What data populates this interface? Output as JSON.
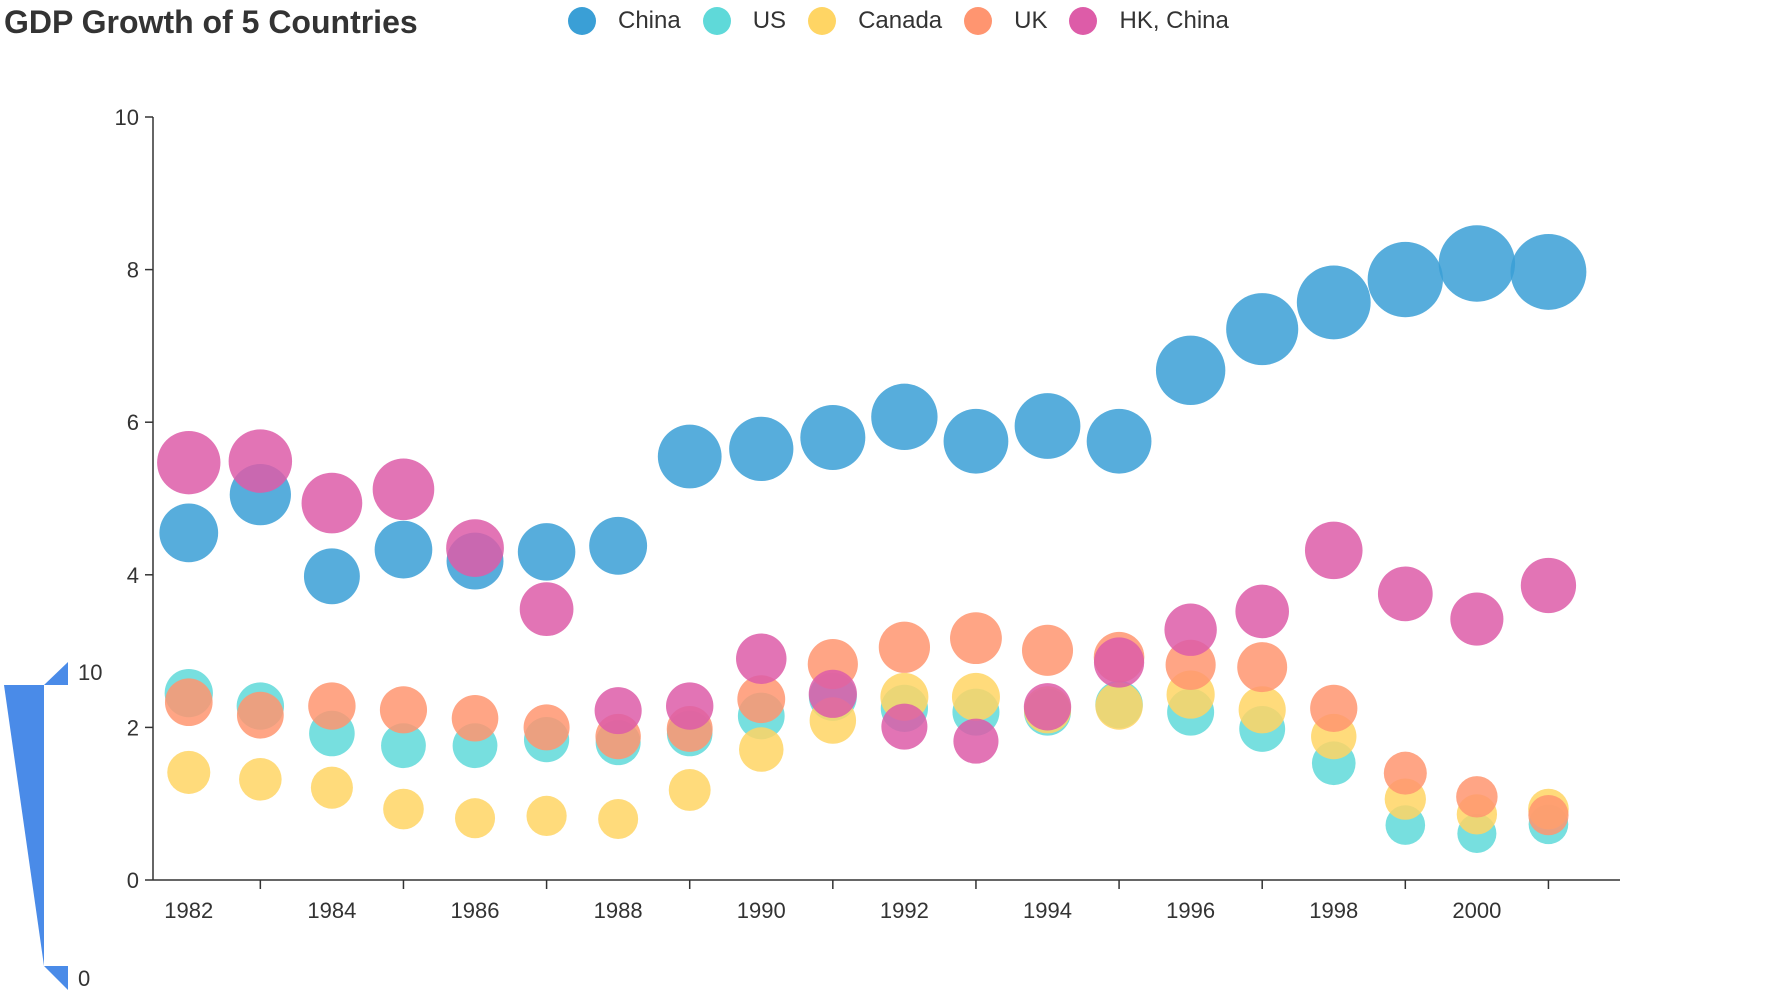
{
  "chart_data": {
    "type": "scatter",
    "title": "GDP Growth of 5 Countries",
    "xlabel": "",
    "ylabel": "",
    "x": [
      1982,
      1983,
      1984,
      1985,
      1986,
      1987,
      1988,
      1989,
      1990,
      1991,
      1992,
      1993,
      1994,
      1995,
      1996,
      1997,
      1998,
      1999,
      2000,
      2001
    ],
    "x_ticks": [
      1982,
      1984,
      1986,
      1988,
      1990,
      1992,
      1994,
      1996,
      1998,
      2000
    ],
    "xlim": [
      1981.5,
      2002
    ],
    "ylim": [
      0,
      10
    ],
    "y_ticks": [
      0,
      2,
      4,
      6,
      8,
      10
    ],
    "legend_position": "top",
    "series": [
      {
        "name": "China",
        "color": "#3a9fd6",
        "values": [
          4.55,
          5.05,
          3.98,
          4.33,
          4.18,
          4.3,
          4.38,
          5.55,
          5.65,
          5.8,
          6.07,
          5.75,
          5.95,
          5.75,
          6.68,
          7.22,
          7.57,
          7.87,
          8.08,
          7.97
        ]
      },
      {
        "name": "US",
        "color": "#5fd9d9",
        "values": [
          2.45,
          2.28,
          1.92,
          1.76,
          1.76,
          1.84,
          1.8,
          1.92,
          2.15,
          2.4,
          2.25,
          2.2,
          2.2,
          2.3,
          2.2,
          1.98,
          1.53,
          0.72,
          0.61,
          0.73
        ]
      },
      {
        "name": "Canada",
        "color": "#ffd564",
        "values": [
          1.41,
          1.32,
          1.21,
          0.93,
          0.81,
          0.84,
          0.8,
          1.18,
          1.71,
          2.09,
          2.4,
          2.4,
          2.23,
          2.28,
          2.43,
          2.23,
          1.88,
          1.06,
          0.86,
          0.93
        ]
      },
      {
        "name": "UK",
        "color": "#ff9570",
        "values": [
          2.33,
          2.16,
          2.28,
          2.23,
          2.12,
          2.0,
          1.88,
          1.98,
          2.37,
          2.83,
          3.05,
          3.17,
          3.01,
          2.92,
          2.82,
          2.79,
          2.25,
          1.4,
          1.09,
          0.85
        ]
      },
      {
        "name": "HK, China",
        "color": "#dd5ca8",
        "values": [
          5.47,
          5.49,
          4.94,
          5.12,
          4.35,
          3.55,
          2.22,
          2.28,
          2.9,
          2.44,
          2.01,
          1.82,
          2.27,
          2.85,
          3.28,
          3.52,
          4.32,
          3.75,
          3.42,
          3.86
        ]
      }
    ],
    "visual_map": {
      "min_label": "0",
      "max_label": "10",
      "min": 0,
      "max": 10,
      "color": "#4a8be8"
    }
  }
}
